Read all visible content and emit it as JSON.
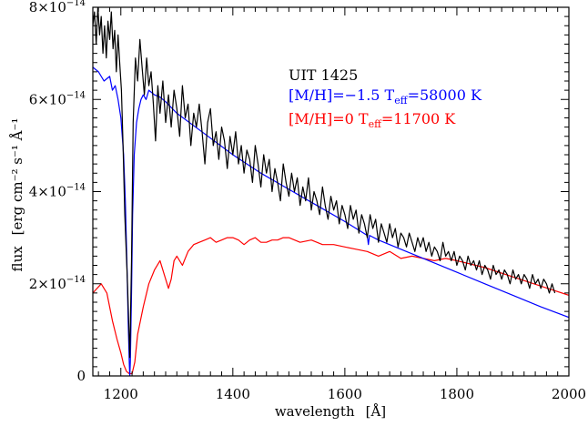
{
  "chart_data": {
    "type": "line",
    "title": "",
    "xlabel": "wavelength",
    "xlabel_unit": "[Å]",
    "ylabel": "flux",
    "ylabel_unit": "[erg cm⁻² s⁻¹ Å⁻¹",
    "xlim": [
      1150,
      2000
    ],
    "ylim": [
      0,
      8e-14
    ],
    "x_ticks": [
      {
        "value": 1200,
        "label": "1200"
      },
      {
        "value": 1400,
        "label": "1400"
      },
      {
        "value": 1600,
        "label": "1600"
      },
      {
        "value": 1800,
        "label": "1800"
      },
      {
        "value": 2000,
        "label": "2000"
      }
    ],
    "y_ticks": [
      {
        "value": 0,
        "mant": "0",
        "exp": ""
      },
      {
        "value": 2e-14,
        "mant": "2×10",
        "exp": "−14"
      },
      {
        "value": 4e-14,
        "mant": "4×10",
        "exp": "−14"
      },
      {
        "value": 6e-14,
        "mant": "6×10",
        "exp": "−14"
      },
      {
        "value": 8e-14,
        "mant": "8×10",
        "exp": "−14"
      }
    ],
    "grid": false,
    "colors": {
      "observed": "#000000",
      "model_hot": "#0000ff",
      "model_cool": "#ff0000"
    },
    "annotations": {
      "object": "UIT 1425",
      "hot_model": {
        "prefix": "[M/H]=−1.5  T",
        "sub": "eff",
        "suffix": "=58000 K"
      },
      "cool_model": {
        "prefix": "[M/H]=0  T",
        "sub": "eff",
        "suffix": "=11700 K"
      }
    },
    "series": [
      {
        "key": "observed",
        "x": [
          1150,
          1153,
          1156,
          1159,
          1162,
          1165,
          1168,
          1171,
          1174,
          1177,
          1180,
          1183,
          1186,
          1189,
          1192,
          1195,
          1198,
          1201,
          1204,
          1207,
          1212,
          1216,
          1219,
          1222,
          1226,
          1230,
          1234,
          1238,
          1242,
          1246,
          1250,
          1254,
          1258,
          1262,
          1266,
          1270,
          1275,
          1280,
          1285,
          1290,
          1295,
          1300,
          1305,
          1310,
          1315,
          1320,
          1325,
          1330,
          1335,
          1340,
          1345,
          1350,
          1355,
          1360,
          1365,
          1370,
          1375,
          1380,
          1385,
          1390,
          1395,
          1400,
          1405,
          1410,
          1415,
          1420,
          1425,
          1430,
          1435,
          1440,
          1445,
          1450,
          1455,
          1460,
          1465,
          1470,
          1475,
          1480,
          1485,
          1490,
          1495,
          1500,
          1505,
          1510,
          1515,
          1520,
          1525,
          1530,
          1535,
          1540,
          1545,
          1550,
          1555,
          1560,
          1565,
          1570,
          1575,
          1580,
          1585,
          1590,
          1595,
          1600,
          1605,
          1610,
          1615,
          1620,
          1625,
          1630,
          1635,
          1640,
          1645,
          1650,
          1655,
          1660,
          1665,
          1670,
          1675,
          1680,
          1685,
          1690,
          1695,
          1700,
          1705,
          1710,
          1715,
          1720,
          1725,
          1730,
          1735,
          1740,
          1745,
          1750,
          1755,
          1760,
          1765,
          1770,
          1775,
          1780,
          1785,
          1790,
          1795,
          1800,
          1805,
          1810,
          1815,
          1820,
          1825,
          1830,
          1835,
          1840,
          1845,
          1850,
          1855,
          1860,
          1865,
          1870,
          1875,
          1880,
          1885,
          1890,
          1895,
          1900,
          1905,
          1910,
          1915,
          1920,
          1925,
          1930,
          1935,
          1940,
          1945,
          1950,
          1955,
          1960,
          1965,
          1970,
          1975
        ],
        "y": [
          7.6e-14,
          7.9e-14,
          7.2e-14,
          8e-14,
          7.4e-14,
          7.8e-14,
          7e-14,
          7.6e-14,
          6.9e-14,
          7.7e-14,
          7.3e-14,
          7.9e-14,
          7.1e-14,
          7.5e-14,
          6.6e-14,
          7.4e-14,
          6.8e-14,
          6.2e-14,
          5e-14,
          3.5e-14,
          2e-14,
          4e-15,
          2.5e-14,
          5.5e-14,
          6.9e-14,
          6.4e-14,
          7.3e-14,
          6.7e-14,
          6.1e-14,
          6.9e-14,
          6.3e-14,
          6.6e-14,
          5.9e-14,
          5.1e-14,
          6.3e-14,
          5.7e-14,
          6.4e-14,
          5.5e-14,
          6.1e-14,
          5.4e-14,
          6.2e-14,
          5.8e-14,
          5.2e-14,
          6.3e-14,
          5.6e-14,
          5.9e-14,
          5e-14,
          5.7e-14,
          5.4e-14,
          5.9e-14,
          5.3e-14,
          4.6e-14,
          5.5e-14,
          5.8e-14,
          5e-14,
          5.3e-14,
          4.7e-14,
          5.4e-14,
          5.1e-14,
          4.5e-14,
          5.2e-14,
          4.8e-14,
          5.3e-14,
          4.6e-14,
          5e-14,
          4.4e-14,
          4.9e-14,
          4.7e-14,
          4.2e-14,
          5e-14,
          4.6e-14,
          4.1e-14,
          4.8e-14,
          4.4e-14,
          4.7e-14,
          4e-14,
          4.5e-14,
          4.2e-14,
          3.8e-14,
          4.6e-14,
          4.2e-14,
          3.9e-14,
          4.4e-14,
          4e-14,
          4.3e-14,
          3.7e-14,
          4.1e-14,
          3.8e-14,
          4.3e-14,
          3.6e-14,
          4e-14,
          3.8e-14,
          3.5e-14,
          4.1e-14,
          3.7e-14,
          3.4e-14,
          3.9e-14,
          3.6e-14,
          3.8e-14,
          3.3e-14,
          3.7e-14,
          3.5e-14,
          3.2e-14,
          3.7e-14,
          3.4e-14,
          3.6e-14,
          3.1e-14,
          3.5e-14,
          3.3e-14,
          3e-14,
          3.5e-14,
          3.2e-14,
          3.4e-14,
          2.9e-14,
          3.3e-14,
          3.1e-14,
          2.9e-14,
          3.3e-14,
          3e-14,
          3.2e-14,
          2.8e-14,
          3.1e-14,
          3e-14,
          2.8e-14,
          3.1e-14,
          2.9e-14,
          2.7e-14,
          3e-14,
          2.8e-14,
          3e-14,
          2.7e-14,
          2.9e-14,
          2.6e-14,
          2.8e-14,
          2.7e-14,
          2.5e-14,
          2.9e-14,
          2.6e-14,
          2.7e-14,
          2.5e-14,
          2.7e-14,
          2.4e-14,
          2.6e-14,
          2.5e-14,
          2.3e-14,
          2.6e-14,
          2.4e-14,
          2.5e-14,
          2.3e-14,
          2.5e-14,
          2.2e-14,
          2.4e-14,
          2.3e-14,
          2.1e-14,
          2.4e-14,
          2.2e-14,
          2.3e-14,
          2.1e-14,
          2.3e-14,
          2.2e-14,
          2e-14,
          2.3e-14,
          2.1e-14,
          2.2e-14,
          2e-14,
          2.2e-14,
          2.1e-14,
          1.9e-14,
          2.2e-14,
          2e-14,
          2.1e-14,
          1.9e-14,
          2.1e-14,
          2e-14,
          1.8e-14,
          2e-14,
          1.8e-14
        ]
      },
      {
        "key": "model_hot",
        "x": [
          1150,
          1160,
          1170,
          1180,
          1185,
          1190,
          1195,
          1200,
          1205,
          1208,
          1211,
          1213,
          1215,
          1216,
          1217,
          1219,
          1221,
          1224,
          1228,
          1232,
          1236,
          1240,
          1245,
          1250,
          1260,
          1270,
          1280,
          1300,
          1350,
          1400,
          1450,
          1500,
          1550,
          1600,
          1640,
          1642,
          1644,
          1660,
          1700,
          1750,
          1800,
          1850,
          1900,
          1950,
          2000
        ],
        "y": [
          6.7e-14,
          6.6e-14,
          6.4e-14,
          6.5e-14,
          6.2e-14,
          6.3e-14,
          6e-14,
          5.6e-14,
          4.8e-14,
          3.8e-14,
          2.4e-14,
          1.2e-14,
          3e-15,
          0.0,
          3e-15,
          1.8e-14,
          3.5e-14,
          4.8e-14,
          5.5e-14,
          5.8e-14,
          6e-14,
          6.1e-14,
          6e-14,
          6.2e-14,
          6.1e-14,
          6.05e-14,
          5.95e-14,
          5.7e-14,
          5.25e-14,
          4.8e-14,
          4.4e-14,
          4.05e-14,
          3.7e-14,
          3.35e-14,
          3.05e-14,
          2.85e-14,
          3.05e-14,
          2.95e-14,
          2.75e-14,
          2.5e-14,
          2.25e-14,
          2e-14,
          1.75e-14,
          1.5e-14,
          1.27e-14
        ]
      },
      {
        "key": "model_cool",
        "x": [
          1150,
          1165,
          1175,
          1185,
          1193,
          1200,
          1205,
          1210,
          1215,
          1220,
          1225,
          1230,
          1240,
          1250,
          1260,
          1270,
          1275,
          1280,
          1285,
          1290,
          1295,
          1300,
          1310,
          1320,
          1330,
          1340,
          1350,
          1360,
          1370,
          1380,
          1390,
          1400,
          1410,
          1420,
          1430,
          1440,
          1450,
          1460,
          1470,
          1480,
          1490,
          1500,
          1520,
          1540,
          1560,
          1580,
          1600,
          1620,
          1640,
          1660,
          1680,
          1700,
          1720,
          1740,
          1760,
          1780,
          1800,
          1850,
          1900,
          1950,
          2000
        ],
        "y": [
          1.8e-14,
          2e-14,
          1.8e-14,
          1.2e-14,
          8e-15,
          5e-15,
          2.5e-15,
          1e-15,
          5e-16,
          5e-16,
          3e-15,
          9e-15,
          1.5e-14,
          2e-14,
          2.3e-14,
          2.5e-14,
          2.3e-14,
          2.1e-14,
          1.9e-14,
          2.1e-14,
          2.5e-14,
          2.6e-14,
          2.4e-14,
          2.7e-14,
          2.85e-14,
          2.9e-14,
          2.95e-14,
          3e-14,
          2.9e-14,
          2.95e-14,
          3e-14,
          3e-14,
          2.95e-14,
          2.85e-14,
          2.95e-14,
          3e-14,
          2.9e-14,
          2.9e-14,
          2.95e-14,
          2.95e-14,
          3e-14,
          3e-14,
          2.9e-14,
          2.95e-14,
          2.85e-14,
          2.85e-14,
          2.8e-14,
          2.75e-14,
          2.7e-14,
          2.6e-14,
          2.7e-14,
          2.55e-14,
          2.6e-14,
          2.55e-14,
          2.5e-14,
          2.55e-14,
          2.5e-14,
          2.35e-14,
          2.15e-14,
          1.95e-14,
          1.75e-14
        ]
      }
    ]
  }
}
